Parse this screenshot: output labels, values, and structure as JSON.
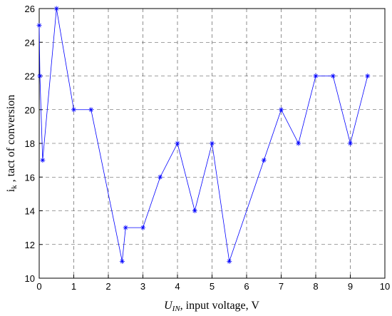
{
  "chart_data": {
    "type": "line",
    "xlabel": {
      "text": "U",
      "sub": "IN",
      "rest": ", input voltage, V"
    },
    "ylabel": {
      "text": "i",
      "sub": "k",
      "rest": " , tact of conversion"
    },
    "x": [
      0,
      0.02,
      0.1,
      0.5,
      1,
      1.5,
      2.4,
      2.5,
      3,
      3.5,
      4,
      4.5,
      5,
      5.5,
      6.5,
      7,
      7.5,
      8,
      8.5,
      9,
      9.5
    ],
    "series": [
      {
        "color": "#0000ff",
        "values": [
          25,
          22,
          17,
          26,
          20,
          20,
          11,
          13,
          13,
          16,
          18,
          14,
          18,
          11,
          17,
          20,
          18,
          22,
          22,
          18,
          22
        ]
      }
    ],
    "xlim": [
      0,
      10
    ],
    "ylim": [
      10,
      26
    ],
    "xticks": [
      0,
      1,
      2,
      3,
      4,
      5,
      6,
      7,
      8,
      9,
      10
    ],
    "yticks": [
      10,
      12,
      14,
      16,
      18,
      20,
      22,
      24,
      26
    ],
    "grid": true
  }
}
